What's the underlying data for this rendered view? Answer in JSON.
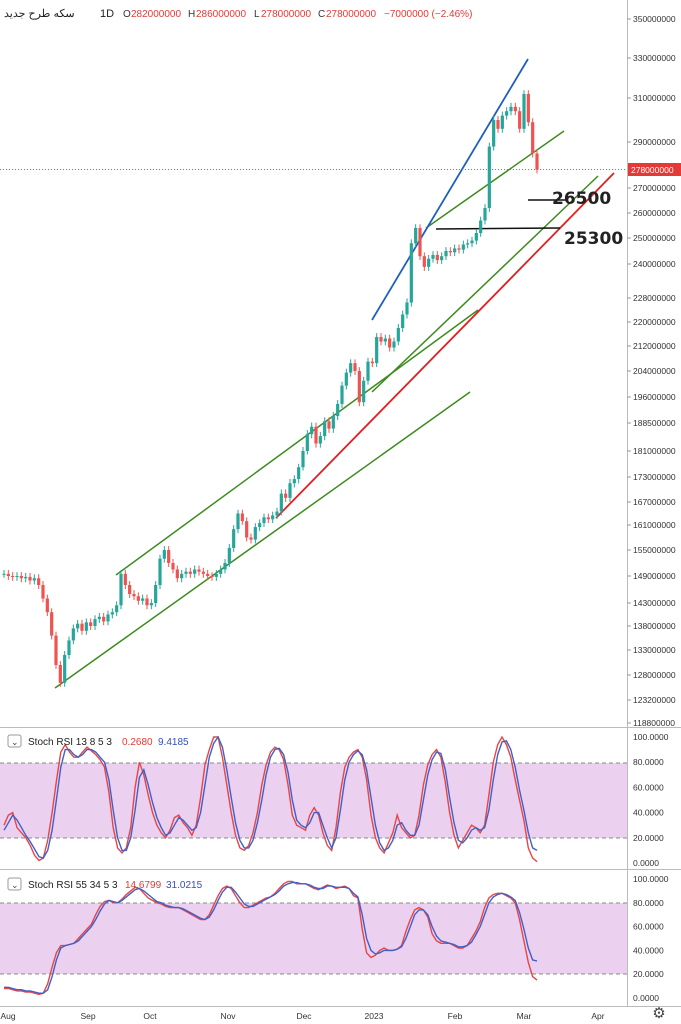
{
  "header": {
    "symbol": "سکه طرح جدید",
    "interval": "1D",
    "open_label": "O",
    "open": "282000000",
    "high_label": "H",
    "high": "286000000",
    "low_label": "L",
    "low": "278000000",
    "close_label": "C",
    "close": "278000000",
    "change": "−7000000 (−2.46%)"
  },
  "colors": {
    "up": "#26a69a",
    "down": "#ef5350",
    "upper_channel": "#3d8b1f",
    "blue_line": "#1f5fc0",
    "red_line": "#e02020",
    "stoch_k": "#e84545",
    "stoch_d": "#4060c8",
    "band": "#e8c8ec"
  },
  "price_axis": {
    "ticks": [
      "350000000",
      "330000000",
      "310000000",
      "290000000",
      "270000000",
      "260000000",
      "250000000",
      "240000000",
      "228000000",
      "220000000",
      "212000000",
      "204000000",
      "196000000",
      "188500000",
      "181000000",
      "173000000",
      "167000000",
      "161000000",
      "155000000",
      "149000000",
      "143000000",
      "138000000",
      "133000000",
      "128000000",
      "123200000",
      "118800000"
    ],
    "last_price_label": "278000000"
  },
  "time_axis": {
    "labels": [
      "Aug",
      "Sep",
      "Oct",
      "Nov",
      "Dec",
      "2023",
      "Feb",
      "Mar",
      "Apr"
    ]
  },
  "annotations": {
    "level_1": "26500",
    "level_2": "25300"
  },
  "stoch1": {
    "title": "Stoch RSI 13 8 5 3",
    "k_value": "0.2680",
    "d_value": "9.4185",
    "ticks": [
      "100.0000",
      "80.0000",
      "60.0000",
      "40.0000",
      "20.0000",
      "0.0000"
    ]
  },
  "stoch2": {
    "title": "Stoch RSI 55 34 5 3",
    "k_value": "14.6799",
    "d_value": "31.0215",
    "ticks": [
      "100.0000",
      "80.0000",
      "60.0000",
      "40.0000",
      "20.0000",
      "0.0000"
    ]
  },
  "chart_data": [
    {
      "type": "candlestick",
      "title": "سکه طرح جدید",
      "interval": "1D",
      "ylim": [
        118800000,
        350000000
      ],
      "x_labels": [
        "Aug",
        "Sep",
        "Oct",
        "Nov",
        "Dec",
        "2023",
        "Feb",
        "Mar",
        "Apr"
      ],
      "closes": [
        149500000,
        149000000,
        148800000,
        149000000,
        148500000,
        148800000,
        148000000,
        148500000,
        147000000,
        144000000,
        141000000,
        136000000,
        130000000,
        126500000,
        132000000,
        135000000,
        137500000,
        138500000,
        137000000,
        138800000,
        138000000,
        139500000,
        140000000,
        139000000,
        140500000,
        141000000,
        142500000,
        149500000,
        147000000,
        145000000,
        144500000,
        143500000,
        144000000,
        142500000,
        143000000,
        147000000,
        153000000,
        155000000,
        152000000,
        150500000,
        148500000,
        149500000,
        150000000,
        149500000,
        150500000,
        150000000,
        149500000,
        149000000,
        148800000,
        149500000,
        150500000,
        152000000,
        155500000,
        160000000,
        164000000,
        162000000,
        158000000,
        157500000,
        160500000,
        161500000,
        163000000,
        162500000,
        163500000,
        164500000,
        169000000,
        168000000,
        171500000,
        172500000,
        176000000,
        181000000,
        185500000,
        187500000,
        183000000,
        185000000,
        189000000,
        187000000,
        190500000,
        194000000,
        199500000,
        203500000,
        206500000,
        204000000,
        194500000,
        201000000,
        207000000,
        206500000,
        215000000,
        213500000,
        214500000,
        211500000,
        213500000,
        218000000,
        222500000,
        226500000,
        248000000,
        254000000,
        243000000,
        239000000,
        242000000,
        243500000,
        241500000,
        243000000,
        245000000,
        244500000,
        246000000,
        245500000,
        247500000,
        248000000,
        249000000,
        252000000,
        257000000,
        262000000,
        288000000,
        300000000,
        296000000,
        302000000,
        304000000,
        306000000,
        304000000,
        296000000,
        312000000,
        299000000,
        285000000,
        278000000
      ],
      "levels": [
        {
          "label": "26500",
          "value": 265000000
        },
        {
          "label": "25300",
          "value": 253000000
        }
      ]
    },
    {
      "type": "line",
      "title": "Stoch RSI 13 8 5 3",
      "ylim": [
        0,
        100
      ],
      "bands": [
        20,
        80
      ],
      "series": [
        {
          "name": "K",
          "values": [
            30,
            38,
            40,
            28,
            24,
            20,
            14,
            6,
            2,
            4,
            18,
            40,
            65,
            88,
            94,
            88,
            84,
            84,
            88,
            92,
            89,
            86,
            82,
            76,
            56,
            28,
            12,
            8,
            12,
            28,
            60,
            80,
            70,
            54,
            40,
            30,
            24,
            20,
            26,
            36,
            38,
            32,
            28,
            22,
            30,
            52,
            78,
            90,
            100,
            100,
            84,
            62,
            40,
            22,
            12,
            10,
            14,
            24,
            40,
            62,
            78,
            88,
            92,
            90,
            82,
            62,
            38,
            30,
            28,
            26,
            38,
            44,
            38,
            24,
            14,
            10,
            28,
            56,
            76,
            84,
            88,
            90,
            84,
            66,
            38,
            20,
            12,
            8,
            16,
            24,
            38,
            28,
            24,
            20,
            22,
            38,
            62,
            78,
            86,
            90,
            84,
            64,
            40,
            22,
            12,
            18,
            24,
            30,
            28,
            24,
            30,
            54,
            80,
            94,
            100,
            94,
            84,
            66,
            50,
            34,
            12,
            4,
            1
          ]
        },
        {
          "name": "D",
          "values": [
            26,
            32,
            38,
            34,
            28,
            22,
            17,
            11,
            5,
            4,
            10,
            26,
            50,
            76,
            90,
            90,
            86,
            84,
            86,
            90,
            90,
            88,
            84,
            80,
            66,
            42,
            20,
            10,
            10,
            20,
            42,
            68,
            74,
            62,
            48,
            36,
            28,
            22,
            24,
            30,
            36,
            34,
            30,
            26,
            28,
            40,
            62,
            84,
            95,
            100,
            92,
            74,
            52,
            32,
            18,
            12,
            12,
            18,
            32,
            50,
            70,
            84,
            90,
            91,
            86,
            72,
            50,
            34,
            30,
            28,
            32,
            40,
            40,
            30,
            20,
            12,
            20,
            42,
            66,
            80,
            86,
            89,
            86,
            74,
            52,
            30,
            16,
            10,
            12,
            18,
            30,
            32,
            26,
            22,
            22,
            30,
            50,
            70,
            82,
            88,
            87,
            74,
            52,
            32,
            18,
            16,
            20,
            26,
            28,
            26,
            28,
            42,
            66,
            86,
            96,
            97,
            90,
            76,
            58,
            42,
            24,
            12,
            10
          ]
        }
      ]
    },
    {
      "type": "line",
      "title": "Stoch RSI 55 34 5 3",
      "ylim": [
        0,
        100
      ],
      "bands": [
        20,
        80
      ],
      "series": [
        {
          "name": "K",
          "values": [
            8,
            8,
            7,
            6,
            6,
            5,
            5,
            4,
            3,
            4,
            12,
            26,
            38,
            44,
            44,
            45,
            46,
            50,
            54,
            58,
            62,
            70,
            77,
            81,
            82,
            80,
            80,
            83,
            87,
            90,
            93,
            92,
            88,
            84,
            82,
            80,
            79,
            77,
            76,
            76,
            76,
            74,
            72,
            70,
            68,
            66,
            66,
            70,
            78,
            86,
            92,
            94,
            92,
            86,
            80,
            76,
            76,
            78,
            80,
            82,
            84,
            85,
            88,
            92,
            96,
            98,
            98,
            96,
            96,
            96,
            94,
            92,
            91,
            93,
            95,
            94,
            92,
            93,
            94,
            92,
            86,
            84,
            58,
            38,
            34,
            36,
            40,
            42,
            40,
            40,
            41,
            44,
            56,
            66,
            74,
            76,
            74,
            68,
            54,
            48,
            46,
            46,
            46,
            44,
            42,
            42,
            44,
            50,
            56,
            64,
            76,
            84,
            87,
            88,
            88,
            86,
            84,
            80,
            66,
            48,
            30,
            18,
            15
          ]
        },
        {
          "name": "D",
          "values": [
            9,
            9,
            8,
            7,
            7,
            6,
            6,
            5,
            4,
            4,
            7,
            18,
            32,
            42,
            44,
            45,
            46,
            48,
            52,
            56,
            60,
            66,
            73,
            79,
            82,
            81,
            80,
            82,
            85,
            88,
            91,
            92,
            90,
            87,
            84,
            81,
            80,
            78,
            77,
            76,
            76,
            75,
            73,
            71,
            69,
            67,
            66,
            68,
            74,
            82,
            89,
            93,
            93,
            89,
            84,
            79,
            77,
            77,
            79,
            81,
            83,
            85,
            87,
            90,
            94,
            96,
            97,
            97,
            96,
            96,
            95,
            93,
            92,
            92,
            94,
            94,
            93,
            93,
            93,
            92,
            88,
            85,
            70,
            50,
            40,
            37,
            38,
            40,
            40,
            40,
            41,
            43,
            50,
            60,
            70,
            74,
            74,
            70,
            60,
            52,
            48,
            47,
            46,
            45,
            43,
            43,
            44,
            47,
            53,
            60,
            70,
            80,
            85,
            87,
            88,
            87,
            85,
            82,
            72,
            58,
            42,
            32,
            31
          ]
        }
      ]
    }
  ]
}
